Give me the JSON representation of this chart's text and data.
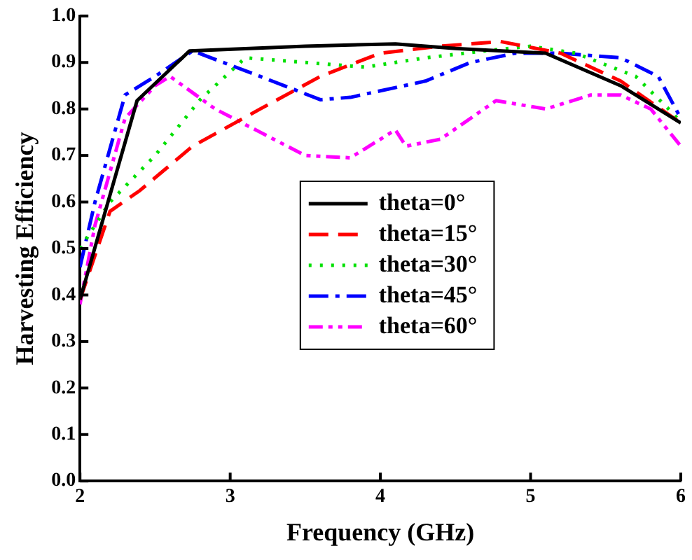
{
  "chart_data": {
    "type": "line",
    "xlabel": "Frequency (GHz)",
    "ylabel": "Harvesting Efficiency",
    "xlim": [
      2,
      6
    ],
    "xticks": [
      2,
      3,
      4,
      5,
      6
    ],
    "ylim": [
      0,
      1
    ],
    "yticks": [
      {
        "value": 0,
        "label": "0.0"
      },
      0.1,
      0.2,
      0.3,
      0.4,
      0.5,
      0.6,
      0.7,
      0.8,
      0.9,
      {
        "value": 1,
        "label": "1.0"
      }
    ],
    "grid": false,
    "legend": "center",
    "marker": "none",
    "series": [
      {
        "name": "theta=0°",
        "color": "#000000",
        "line_style": "solid",
        "x": [
          2,
          2.38,
          2.73,
          3.5,
          4.1,
          4.5,
          5.1,
          5.6,
          6
        ],
        "values": [
          0.39,
          0.818,
          0.925,
          0.935,
          0.94,
          0.93,
          0.92,
          0.85,
          0.77
        ]
      },
      {
        "name": "theta=15°",
        "color": "#ff0000",
        "line_style": "dashed",
        "x": [
          2,
          2.2,
          2.4,
          2.75,
          3.2,
          3.6,
          4,
          4.4,
          4.8,
          5.2,
          5.6,
          6
        ],
        "values": [
          0.39,
          0.58,
          0.625,
          0.72,
          0.8,
          0.87,
          0.92,
          0.935,
          0.945,
          0.92,
          0.86,
          0.77
        ]
      },
      {
        "name": "theta=30°",
        "color": "#00e000",
        "line_style": "dotted",
        "x": [
          2,
          2.2,
          2.5,
          2.8,
          3.1,
          3.5,
          3.9,
          4.3,
          4.7,
          5,
          5.3,
          5.7,
          5.95,
          6
        ],
        "values": [
          0.5,
          0.6,
          0.7,
          0.82,
          0.91,
          0.9,
          0.89,
          0.91,
          0.925,
          0.935,
          0.92,
          0.87,
          0.79,
          0.77
        ]
      },
      {
        "name": "theta=45°",
        "color": "#0000ff",
        "line_style": "dashdot",
        "x": [
          2,
          2.1,
          2.3,
          2.5,
          2.75,
          3.2,
          3.6,
          3.8,
          4.3,
          4.6,
          4.9,
          5.2,
          5.6,
          5.85,
          6
        ],
        "values": [
          0.46,
          0.6,
          0.83,
          0.87,
          0.925,
          0.87,
          0.82,
          0.825,
          0.86,
          0.9,
          0.92,
          0.92,
          0.91,
          0.87,
          0.78
        ]
      },
      {
        "name": "theta=60°",
        "color": "#ff00ff",
        "line_style": "dashdotdot",
        "x": [
          2,
          2.1,
          2.3,
          2.5,
          2.6,
          2.9,
          3.2,
          3.5,
          3.8,
          4.1,
          4.17,
          4.4,
          4.77,
          5.1,
          5.4,
          5.6,
          5.8,
          6
        ],
        "values": [
          0.38,
          0.55,
          0.78,
          0.85,
          0.87,
          0.8,
          0.75,
          0.7,
          0.695,
          0.755,
          0.72,
          0.735,
          0.818,
          0.8,
          0.83,
          0.83,
          0.8,
          0.72
        ]
      }
    ]
  }
}
